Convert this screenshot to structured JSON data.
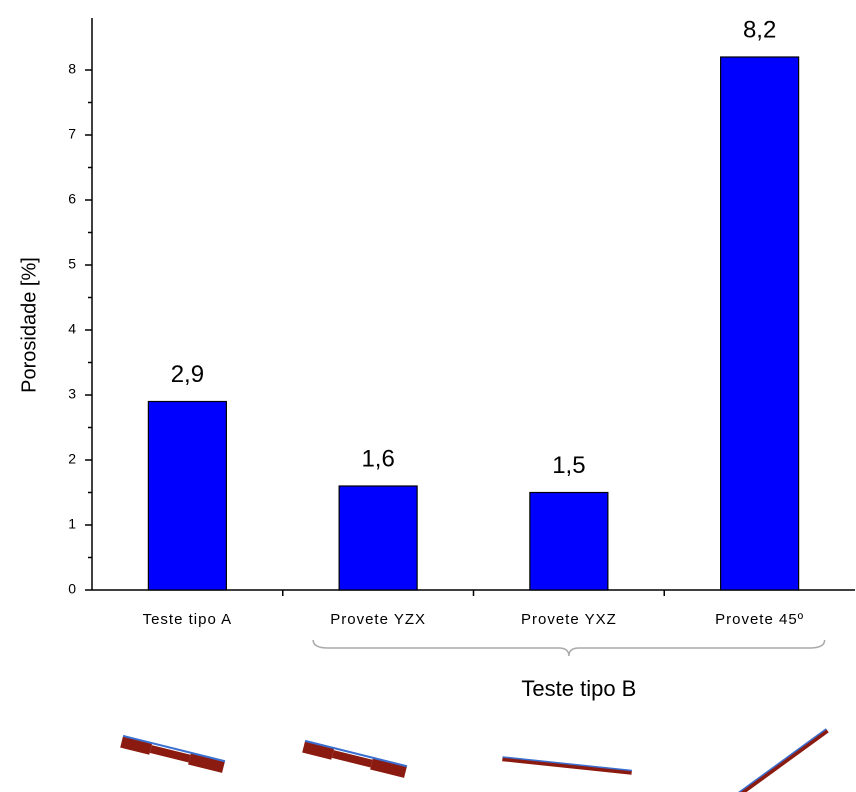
{
  "chart_data": {
    "type": "bar",
    "y_label": "Porosidade [%]",
    "categories": [
      "Teste tipo A",
      "Provete YZX",
      "Provete YXZ",
      "Provete 45º"
    ],
    "values": [
      2.9,
      1.6,
      1.5,
      8.2
    ],
    "value_labels": [
      "2,9",
      "1,6",
      "1,5",
      "8,2"
    ],
    "color": "#0000ff",
    "ylim": [
      0,
      8.8
    ],
    "yticks": [
      0,
      1,
      2,
      3,
      4,
      5,
      6,
      7,
      8
    ],
    "annotations": [
      {
        "text": "Teste tipo B"
      }
    ]
  }
}
